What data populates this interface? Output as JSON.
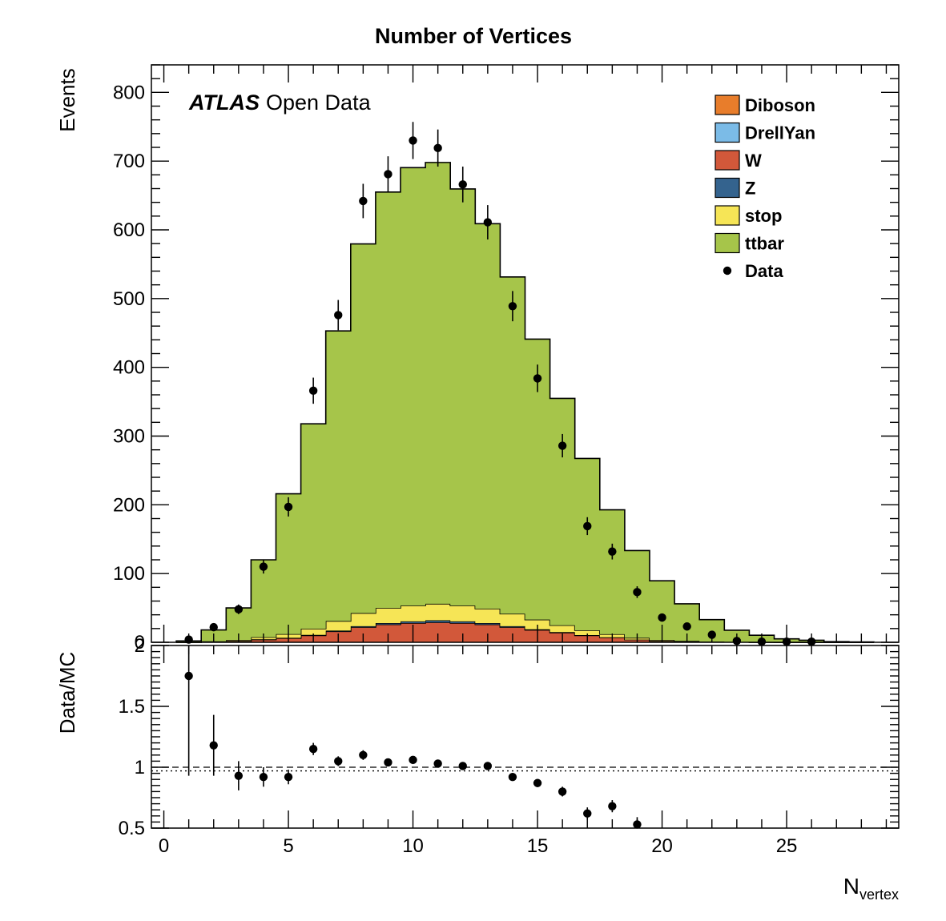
{
  "chart_data": [
    {
      "type": "area",
      "title": "Number of Vertices",
      "ylabel": "Events",
      "xlabel": "",
      "xlim": [
        -0.5,
        29.5
      ],
      "ylim": [
        0,
        840
      ],
      "yticks": [
        0,
        100,
        200,
        300,
        400,
        500,
        600,
        700,
        800
      ],
      "annotation": {
        "bold": "ATLAS",
        "rest": "Open Data"
      },
      "legend_position": "top-right",
      "bin_edges": [
        0.5,
        1.5,
        2.5,
        3.5,
        4.5,
        5.5,
        6.5,
        7.5,
        8.5,
        9.5,
        10.5,
        11.5,
        12.5,
        13.5,
        14.5,
        15.5,
        16.5,
        17.5,
        18.5,
        19.5,
        20.5,
        21.5,
        22.5,
        23.5,
        24.5,
        25.5,
        26.5,
        27.5,
        28.5
      ],
      "series": [
        {
          "name": "Diboson",
          "color": "#e87d2b",
          "values": [
            0,
            0,
            0,
            0,
            0,
            0,
            0,
            0,
            0,
            0,
            0,
            0,
            0,
            0,
            0,
            0,
            0,
            0,
            0,
            0,
            0,
            0,
            0,
            0,
            0,
            0,
            0,
            0
          ]
        },
        {
          "name": "DrellYan",
          "color": "#7bbbe7",
          "values": [
            0,
            0,
            0,
            0,
            0,
            0,
            0,
            0,
            0,
            0,
            0,
            0,
            0,
            0,
            0,
            0,
            0,
            0,
            0,
            0,
            0,
            0,
            0,
            0,
            0,
            0,
            0,
            0
          ]
        },
        {
          "name": "W",
          "color": "#d2583a",
          "values": [
            0,
            1,
            2,
            4,
            6,
            10,
            16,
            22,
            26,
            28,
            29,
            28,
            26,
            22,
            18,
            14,
            10,
            7,
            4,
            2,
            1,
            0.5,
            0.3,
            0.1,
            0,
            0,
            0,
            0
          ]
        },
        {
          "name": "Z",
          "color": "#34638e",
          "values": [
            0,
            0,
            0,
            0.3,
            0.5,
            0.8,
            1,
            1.5,
            2,
            2.5,
            3,
            2.5,
            2,
            1.5,
            1,
            0.8,
            0.5,
            0.3,
            0,
            0,
            0,
            0,
            0,
            0,
            0,
            0,
            0,
            0
          ]
        },
        {
          "name": "stop",
          "color": "#f6e556",
          "values": [
            0,
            0.5,
            1.5,
            3.2,
            5.5,
            9,
            14,
            19,
            22,
            23,
            24,
            23,
            21,
            18,
            14,
            10,
            7,
            4.5,
            2.5,
            1.5,
            1,
            0.5,
            0.3,
            0.2,
            0,
            0,
            0,
            0
          ]
        },
        {
          "name": "ttbar",
          "color": "#a6c54a",
          "values": [
            2,
            16.5,
            46.5,
            112.5,
            204,
            298,
            422,
            537,
            605,
            637,
            642,
            606,
            560,
            490,
            408,
            330,
            250,
            181,
            127,
            86,
            54,
            32,
            17,
            10,
            5,
            3,
            1,
            0.5
          ]
        }
      ],
      "data": {
        "name": "Data",
        "x": [
          1,
          2,
          3,
          4,
          5,
          6,
          7,
          8,
          9,
          10,
          11,
          12,
          13,
          14,
          15,
          16,
          17,
          18,
          19,
          20,
          21,
          22,
          23,
          24,
          25,
          26
        ],
        "y": [
          4,
          22,
          48,
          110,
          197,
          366,
          476,
          642,
          681,
          730,
          719,
          666,
          611,
          489,
          384,
          286,
          169,
          132,
          73,
          36,
          23,
          11,
          2,
          1,
          1,
          1
        ],
        "err": [
          2,
          5,
          7,
          10,
          14,
          19,
          22,
          25,
          26,
          27,
          27,
          26,
          25,
          22,
          20,
          17,
          13,
          11.5,
          8.5,
          6,
          4.8,
          3.3,
          1.4,
          1,
          1,
          1
        ]
      }
    },
    {
      "type": "scatter",
      "ylabel": "Data/MC",
      "xlabel": "N",
      "xlabel_sub": "vertex",
      "xlim": [
        -0.5,
        29.5
      ],
      "ylim": [
        0.5,
        2
      ],
      "yticks": [
        "0.5",
        "1",
        "1.5",
        "2"
      ],
      "xticks": [
        "0",
        "5",
        "10",
        "15",
        "20",
        "25"
      ],
      "reference_lines": [
        1.0,
        0.97
      ],
      "series": [
        {
          "name": "Data/MC",
          "x": [
            1,
            2,
            3,
            4,
            5,
            6,
            7,
            8,
            9,
            10,
            11,
            12,
            13,
            14,
            15,
            16,
            17,
            18,
            19
          ],
          "y": [
            1.75,
            1.18,
            0.93,
            0.92,
            0.92,
            1.15,
            1.05,
            1.1,
            1.04,
            1.06,
            1.03,
            1.01,
            1.01,
            0.92,
            0.87,
            0.8,
            0.62,
            0.68,
            0.53
          ],
          "err": [
            0.82,
            0.25,
            0.12,
            0.08,
            0.06,
            0.05,
            0.04,
            0.04,
            0.03,
            0.03,
            0.03,
            0.03,
            0.03,
            0.03,
            0.03,
            0.04,
            0.05,
            0.05,
            0.06
          ]
        }
      ]
    }
  ]
}
